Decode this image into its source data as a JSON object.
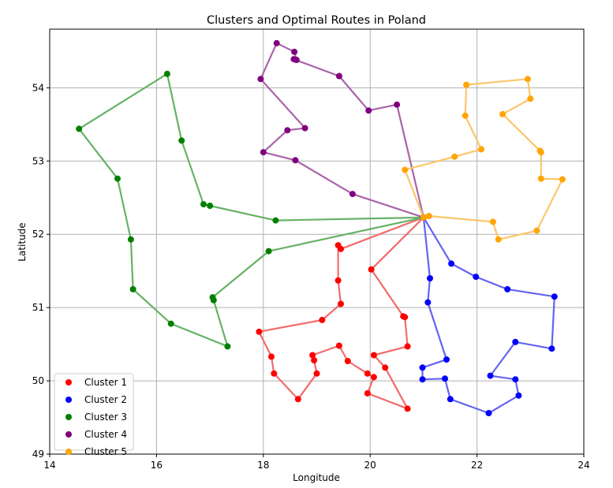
{
  "chart_data": {
    "type": "scatter",
    "title": "Clusters and Optimal Routes in Poland",
    "xlabel": "Longitude",
    "ylabel": "Latitude",
    "xlim": [
      14,
      24
    ],
    "ylim": [
      49,
      54.8
    ],
    "xticks": [
      14,
      16,
      18,
      20,
      22,
      24
    ],
    "yticks": [
      49,
      50,
      51,
      52,
      53,
      54
    ],
    "grid": true,
    "legend_position": "lower-left",
    "depot": [
      21.0,
      52.23
    ],
    "series": [
      {
        "name": "Cluster 1",
        "color": "#ff0000",
        "line_color": "#f26b6b",
        "route": [
          [
            21.0,
            52.23
          ],
          [
            19.45,
            51.8
          ],
          [
            19.4,
            51.85
          ],
          [
            19.4,
            51.37
          ],
          [
            19.45,
            51.05
          ],
          [
            19.1,
            50.83
          ],
          [
            17.92,
            50.67
          ],
          [
            18.15,
            50.33
          ],
          [
            18.2,
            50.1
          ],
          [
            18.65,
            49.75
          ],
          [
            19.0,
            50.1
          ],
          [
            18.95,
            50.28
          ],
          [
            18.92,
            50.35
          ],
          [
            19.42,
            50.48
          ],
          [
            19.58,
            50.27
          ],
          [
            19.95,
            50.1
          ],
          [
            20.07,
            50.05
          ],
          [
            19.95,
            49.83
          ],
          [
            20.7,
            49.62
          ],
          [
            20.28,
            50.18
          ],
          [
            20.07,
            50.35
          ],
          [
            20.7,
            50.47
          ],
          [
            20.65,
            50.87
          ],
          [
            20.62,
            50.88
          ],
          [
            20.02,
            51.52
          ],
          [
            21.0,
            52.23
          ]
        ]
      },
      {
        "name": "Cluster 2",
        "color": "#0000ff",
        "line_color": "#6464f2",
        "route": [
          [
            21.0,
            52.23
          ],
          [
            21.12,
            51.4
          ],
          [
            21.08,
            51.07
          ],
          [
            21.43,
            50.29
          ],
          [
            20.98,
            50.18
          ],
          [
            20.98,
            50.02
          ],
          [
            21.4,
            50.03
          ],
          [
            21.5,
            49.75
          ],
          [
            22.22,
            49.56
          ],
          [
            22.78,
            49.8
          ],
          [
            22.72,
            50.02
          ],
          [
            22.25,
            50.07
          ],
          [
            22.72,
            50.53
          ],
          [
            23.4,
            50.44
          ],
          [
            23.45,
            51.15
          ],
          [
            22.57,
            51.25
          ],
          [
            21.98,
            51.42
          ],
          [
            21.52,
            51.6
          ],
          [
            21.0,
            52.23
          ]
        ]
      },
      {
        "name": "Cluster 3",
        "color": "#008000",
        "line_color": "#66b266",
        "route": [
          [
            21.0,
            52.23
          ],
          [
            18.23,
            52.19
          ],
          [
            17.0,
            52.39
          ],
          [
            16.88,
            52.41
          ],
          [
            16.47,
            53.28
          ],
          [
            16.2,
            54.19
          ],
          [
            14.55,
            53.44
          ],
          [
            15.27,
            52.76
          ],
          [
            15.52,
            51.93
          ],
          [
            15.56,
            51.25
          ],
          [
            16.27,
            50.78
          ],
          [
            17.33,
            50.47
          ],
          [
            17.07,
            51.1
          ],
          [
            17.05,
            51.14
          ],
          [
            18.1,
            51.77
          ],
          [
            21.0,
            52.23
          ]
        ]
      },
      {
        "name": "Cluster 4",
        "color": "#800080",
        "line_color": "#a864a8",
        "route": [
          [
            21.0,
            52.23
          ],
          [
            19.67,
            52.55
          ],
          [
            18.6,
            53.01
          ],
          [
            18.0,
            53.12
          ],
          [
            18.45,
            53.42
          ],
          [
            18.78,
            53.45
          ],
          [
            17.95,
            54.12
          ],
          [
            18.25,
            54.61
          ],
          [
            18.58,
            54.49
          ],
          [
            18.62,
            54.38
          ],
          [
            18.57,
            54.39
          ],
          [
            19.42,
            54.16
          ],
          [
            19.97,
            53.69
          ],
          [
            20.5,
            53.77
          ],
          [
            21.0,
            52.23
          ]
        ]
      },
      {
        "name": "Cluster 5",
        "color": "#ffa500",
        "line_color": "#fcc66a",
        "route": [
          [
            21.0,
            52.23
          ],
          [
            21.1,
            52.25
          ],
          [
            22.3,
            52.17
          ],
          [
            22.4,
            51.93
          ],
          [
            23.12,
            52.05
          ],
          [
            23.6,
            52.75
          ],
          [
            23.2,
            52.76
          ],
          [
            23.2,
            53.12
          ],
          [
            23.18,
            53.14
          ],
          [
            22.48,
            53.64
          ],
          [
            23.0,
            53.85
          ],
          [
            22.95,
            54.12
          ],
          [
            21.8,
            54.04
          ],
          [
            21.78,
            53.62
          ],
          [
            22.08,
            53.16
          ],
          [
            21.58,
            53.06
          ],
          [
            20.65,
            52.88
          ],
          [
            21.0,
            52.23
          ]
        ]
      }
    ]
  }
}
